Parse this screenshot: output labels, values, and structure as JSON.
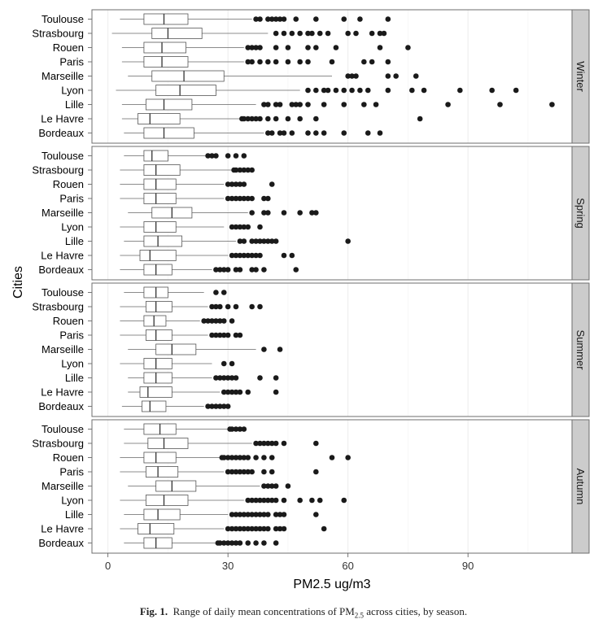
{
  "chart_data": {
    "type": "boxplot",
    "orientation": "horizontal",
    "xlabel": "PM2.5 ug/m3",
    "ylabel": "Cities",
    "xlim": [
      -4,
      116
    ],
    "xticks": [
      0,
      30,
      60,
      90
    ],
    "grid": true,
    "categories": [
      "Toulouse",
      "Strasbourg",
      "Rouen",
      "Paris",
      "Marseille",
      "Lyon",
      "Lille",
      "Le Havre",
      "Bordeaux"
    ],
    "facets": [
      {
        "name": "Winter",
        "boxes": [
          {
            "city": "Toulouse",
            "lw": 3,
            "q1": 9,
            "med": 14,
            "q3": 20,
            "uw": 36,
            "outliers": [
              37,
              38,
              40,
              41,
              42,
              43,
              44,
              47,
              52,
              59,
              63,
              70
            ]
          },
          {
            "city": "Strasbourg",
            "lw": 1,
            "q1": 11,
            "med": 15,
            "q3": 23.5,
            "uw": 40,
            "outliers": [
              42,
              44,
              46,
              48,
              50,
              51,
              53,
              55,
              60,
              62,
              66,
              68,
              69
            ]
          },
          {
            "city": "Rouen",
            "lw": 3.5,
            "q1": 9,
            "med": 13.5,
            "q3": 19.5,
            "uw": 34,
            "outliers": [
              35,
              36,
              37,
              38,
              42,
              45,
              50,
              52,
              57,
              68,
              75
            ]
          },
          {
            "city": "Paris",
            "lw": 3.5,
            "q1": 9,
            "med": 13.5,
            "q3": 20,
            "uw": 34,
            "outliers": [
              35,
              36,
              38,
              40,
              42,
              45,
              48,
              50,
              56,
              64,
              66,
              70
            ]
          },
          {
            "city": "Marseille",
            "lw": 5,
            "q1": 11,
            "med": 19,
            "q3": 29,
            "uw": 56,
            "outliers": [
              60,
              61,
              62,
              70,
              72,
              77
            ]
          },
          {
            "city": "Lyon",
            "lw": 2,
            "q1": 12,
            "med": 18,
            "q3": 27,
            "uw": 48,
            "outliers": [
              50,
              52,
              54,
              55,
              57,
              59,
              61,
              63,
              65,
              70,
              76,
              79,
              88,
              96,
              102
            ]
          },
          {
            "city": "Lille",
            "lw": 3.5,
            "q1": 9.5,
            "med": 14,
            "q3": 21,
            "uw": 37,
            "outliers": [
              39,
              40,
              42,
              43,
              46,
              47,
              48,
              50,
              54,
              59,
              64,
              67,
              85,
              98,
              111
            ]
          },
          {
            "city": "Le Havre",
            "lw": 3.5,
            "q1": 7.5,
            "med": 10.5,
            "q3": 18,
            "uw": 33,
            "outliers": [
              33.5,
              34,
              35,
              36,
              37,
              38,
              40,
              42,
              45,
              48,
              52,
              78
            ]
          },
          {
            "city": "Bordeaux",
            "lw": 4,
            "q1": 9,
            "med": 14,
            "q3": 21.5,
            "uw": 39,
            "outliers": [
              40,
              41,
              43,
              44,
              46,
              50,
              52,
              54,
              59,
              65,
              68
            ]
          }
        ]
      },
      {
        "name": "Spring",
        "boxes": [
          {
            "city": "Toulouse",
            "lw": 4,
            "q1": 9,
            "med": 11,
            "q3": 15,
            "uw": 25,
            "outliers": [
              25,
              26,
              27,
              30,
              32,
              34
            ]
          },
          {
            "city": "Strasbourg",
            "lw": 3,
            "q1": 9,
            "med": 12,
            "q3": 18,
            "uw": 31,
            "outliers": [
              31.5,
              32,
              33,
              34,
              35,
              36
            ]
          },
          {
            "city": "Rouen",
            "lw": 3,
            "q1": 9,
            "med": 12,
            "q3": 17,
            "uw": 29,
            "outliers": [
              30,
              31,
              32,
              33,
              34,
              41
            ]
          },
          {
            "city": "Paris",
            "lw": 3,
            "q1": 9,
            "med": 12,
            "q3": 17,
            "uw": 29,
            "outliers": [
              30,
              31,
              32,
              33,
              34,
              35,
              36,
              39,
              40
            ]
          },
          {
            "city": "Marseille",
            "lw": 5,
            "q1": 11,
            "med": 16,
            "q3": 21,
            "uw": 35,
            "outliers": [
              36,
              39,
              40,
              44,
              48,
              51,
              52
            ]
          },
          {
            "city": "Lyon",
            "lw": 3,
            "q1": 9,
            "med": 12,
            "q3": 17,
            "uw": 29,
            "outliers": [
              31,
              32,
              33,
              34,
              35,
              38
            ]
          },
          {
            "city": "Lille",
            "lw": 4,
            "q1": 9,
            "med": 12.5,
            "q3": 18.5,
            "uw": 32,
            "outliers": [
              33,
              34,
              36,
              37,
              38,
              39,
              40,
              41,
              42,
              60
            ]
          },
          {
            "city": "Le Havre",
            "lw": 3,
            "q1": 8,
            "med": 10.5,
            "q3": 17,
            "uw": 30,
            "outliers": [
              31,
              32,
              33,
              34,
              35,
              36,
              37,
              38,
              44,
              46
            ]
          },
          {
            "city": "Bordeaux",
            "lw": 3,
            "q1": 9,
            "med": 12,
            "q3": 16,
            "uw": 26,
            "outliers": [
              27,
              28,
              29,
              30,
              32,
              33,
              36,
              37,
              39,
              47
            ]
          }
        ]
      },
      {
        "name": "Summer",
        "boxes": [
          {
            "city": "Toulouse",
            "lw": 4,
            "q1": 9,
            "med": 12,
            "q3": 15,
            "uw": 24,
            "outliers": [
              27,
              29
            ]
          },
          {
            "city": "Strasbourg",
            "lw": 3,
            "q1": 9.5,
            "med": 12,
            "q3": 16,
            "uw": 25,
            "outliers": [
              26,
              27,
              28,
              30,
              32,
              36,
              38
            ]
          },
          {
            "city": "Rouen",
            "lw": 3,
            "q1": 9,
            "med": 11.5,
            "q3": 14.5,
            "uw": 23,
            "outliers": [
              24,
              25,
              26,
              27,
              28,
              29,
              31
            ]
          },
          {
            "city": "Paris",
            "lw": 3,
            "q1": 9.5,
            "med": 12,
            "q3": 16,
            "uw": 25,
            "outliers": [
              26,
              27,
              28,
              29,
              30,
              32,
              33
            ]
          },
          {
            "city": "Marseille",
            "lw": 5,
            "q1": 12,
            "med": 16,
            "q3": 22,
            "uw": 37,
            "outliers": [
              39,
              43
            ]
          },
          {
            "city": "Lyon",
            "lw": 3,
            "q1": 9,
            "med": 12,
            "q3": 16,
            "uw": 26,
            "outliers": [
              29,
              31
            ]
          },
          {
            "city": "Lille",
            "lw": 5,
            "q1": 9,
            "med": 12,
            "q3": 16,
            "uw": 26,
            "outliers": [
              27,
              28,
              29,
              30,
              31,
              32,
              38,
              42
            ]
          },
          {
            "city": "Le Havre",
            "lw": 5,
            "q1": 8,
            "med": 10,
            "q3": 16,
            "uw": 28,
            "outliers": [
              29,
              30,
              31,
              32,
              33,
              35,
              42
            ]
          },
          {
            "city": "Bordeaux",
            "lw": 3.5,
            "q1": 8.5,
            "med": 10.5,
            "q3": 14.5,
            "uw": 24,
            "outliers": [
              25,
              26,
              27,
              28,
              29,
              30
            ]
          }
        ]
      },
      {
        "name": "Autumn",
        "boxes": [
          {
            "city": "Toulouse",
            "lw": 4,
            "q1": 9,
            "med": 13,
            "q3": 17,
            "uw": 30,
            "outliers": [
              30.5,
              31,
              32,
              33,
              34
            ]
          },
          {
            "city": "Strasbourg",
            "lw": 4,
            "q1": 10,
            "med": 14,
            "q3": 20,
            "uw": 36,
            "outliers": [
              37,
              38,
              39,
              40,
              41,
              42,
              44,
              52
            ]
          },
          {
            "city": "Rouen",
            "lw": 3,
            "q1": 9,
            "med": 12,
            "q3": 17,
            "uw": 28,
            "outliers": [
              28.5,
              29,
              30,
              31,
              32,
              33,
              34,
              35,
              37,
              39,
              41,
              56,
              60
            ]
          },
          {
            "city": "Paris",
            "lw": 3,
            "q1": 9.5,
            "med": 12.5,
            "q3": 17.5,
            "uw": 29,
            "outliers": [
              30,
              31,
              32,
              33,
              34,
              35,
              36,
              39,
              41,
              52
            ]
          },
          {
            "city": "Marseille",
            "lw": 5,
            "q1": 12,
            "med": 16,
            "q3": 22,
            "uw": 38,
            "outliers": [
              39,
              40,
              41,
              42,
              45
            ]
          },
          {
            "city": "Lyon",
            "lw": 3,
            "q1": 9.5,
            "med": 14,
            "q3": 20,
            "uw": 34,
            "outliers": [
              35,
              36,
              37,
              38,
              39,
              40,
              41,
              42,
              44,
              48,
              51,
              53,
              59
            ]
          },
          {
            "city": "Lille",
            "lw": 4,
            "q1": 9,
            "med": 12.5,
            "q3": 18,
            "uw": 30,
            "outliers": [
              31,
              32,
              33,
              34,
              35,
              36,
              37,
              38,
              39,
              40,
              42,
              43,
              44,
              52
            ]
          },
          {
            "city": "Le Havre",
            "lw": 3,
            "q1": 7.5,
            "med": 10.5,
            "q3": 16.5,
            "uw": 29,
            "outliers": [
              30,
              31,
              32,
              33,
              34,
              35,
              36,
              37,
              38,
              39,
              40,
              42,
              43,
              44,
              54
            ]
          },
          {
            "city": "Bordeaux",
            "lw": 4,
            "q1": 9,
            "med": 12,
            "q3": 16,
            "uw": 27,
            "outliers": [
              27.5,
              28,
              29,
              30,
              31,
              32,
              33,
              35,
              37,
              39,
              42
            ]
          }
        ]
      }
    ]
  },
  "caption": {
    "label": "Fig. 1.",
    "text_before": "Range of daily mean concentrations of PM",
    "subscript": "2.5",
    "text_after": " across cities, by season."
  },
  "colors": {
    "panel_border": "#6e6e6e",
    "strip_fill": "#cccccc",
    "grid": "#ececec",
    "box_stroke": "#555555",
    "whisker": "#666666",
    "outlier": "#1a1a1a"
  }
}
